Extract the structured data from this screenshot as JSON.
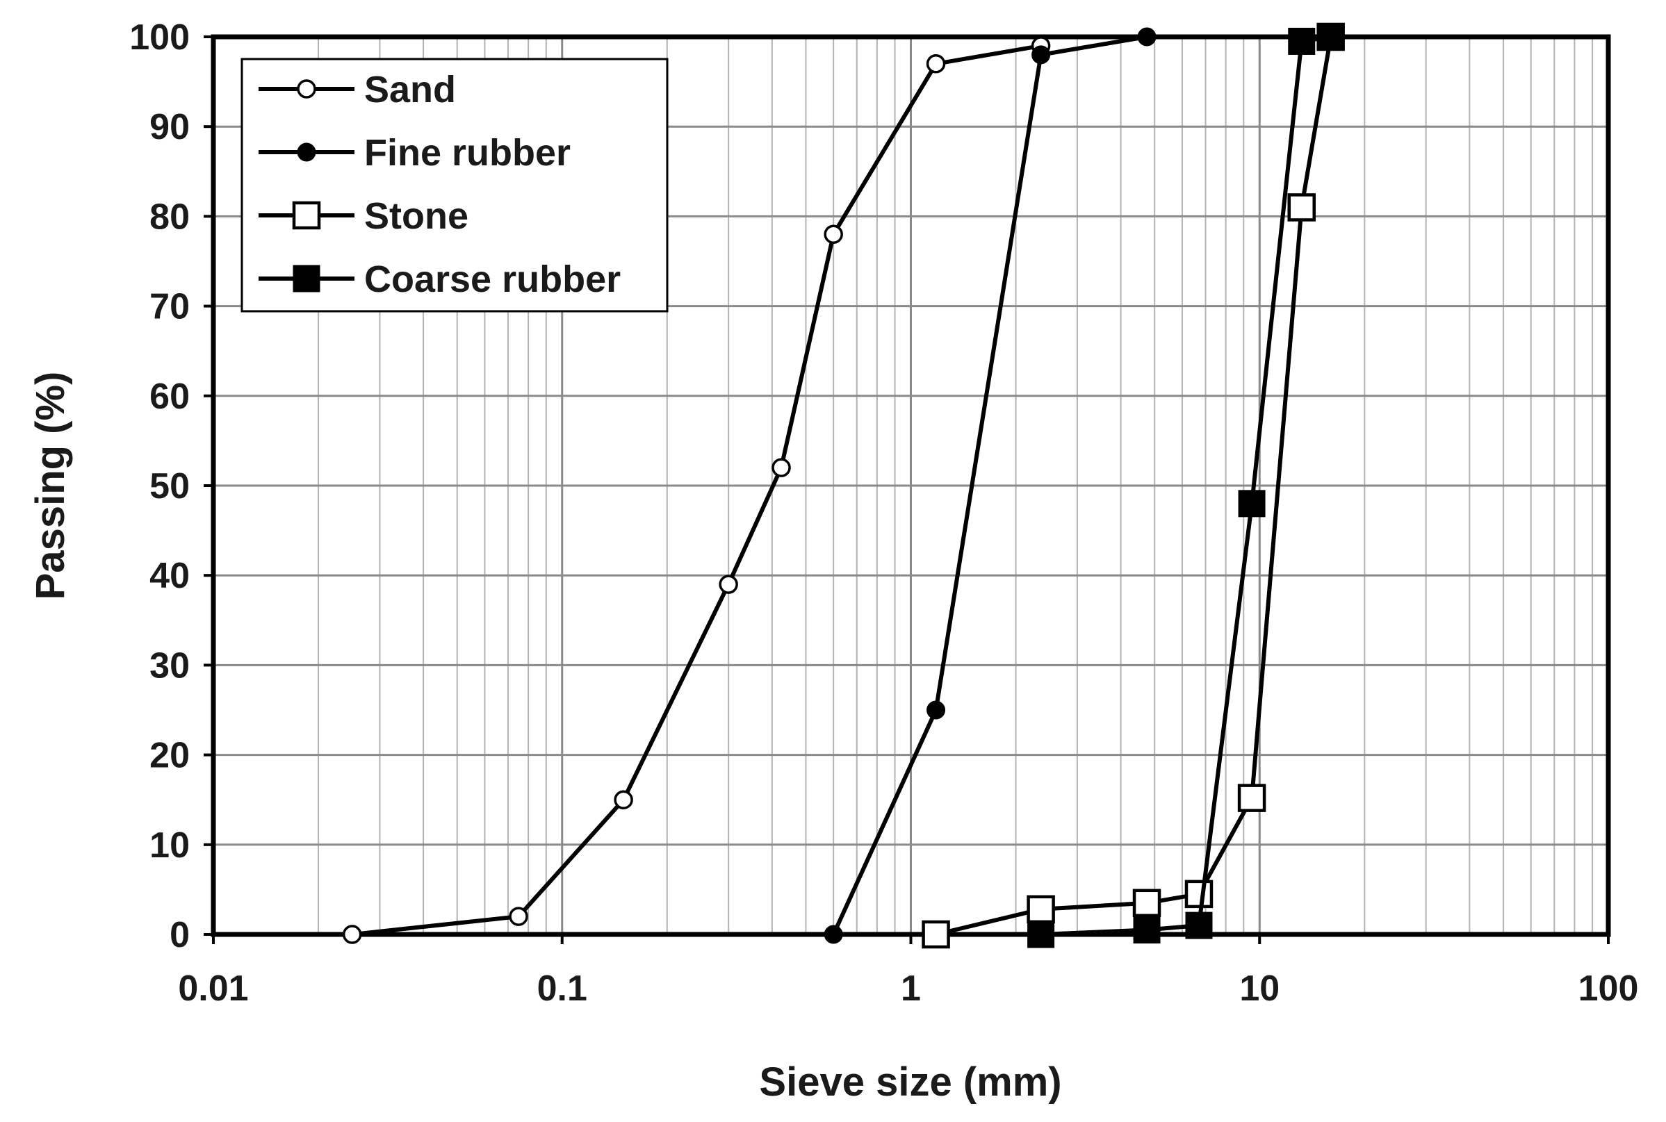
{
  "chart_data": {
    "type": "line",
    "xlabel": "Sieve size (mm)",
    "ylabel": "Passing (%)",
    "xscale": "log",
    "xlim": [
      0.01,
      100
    ],
    "ylim": [
      0,
      100
    ],
    "x_ticks": [
      "0.01",
      "0.1",
      "1",
      "10",
      "100"
    ],
    "y_ticks": [
      "0",
      "10",
      "20",
      "30",
      "40",
      "50",
      "60",
      "70",
      "80",
      "90",
      "100"
    ],
    "grid": true,
    "legend_position": "top-left",
    "series": [
      {
        "name": "Sand",
        "marker": "open-circle",
        "x": [
          0.025,
          0.075,
          0.15,
          0.3,
          0.425,
          0.6,
          1.18,
          2.36
        ],
        "y": [
          0,
          2,
          15,
          39,
          52,
          78,
          97,
          99
        ]
      },
      {
        "name": "Fine rubber",
        "marker": "filled-circle",
        "x": [
          0.6,
          1.18,
          2.36,
          4.75
        ],
        "y": [
          0,
          25,
          98,
          100
        ]
      },
      {
        "name": "Stone",
        "marker": "open-square",
        "x": [
          1.18,
          2.36,
          4.75,
          6.7,
          9.5,
          13.2,
          16
        ],
        "y": [
          0,
          2.8,
          3.5,
          4.5,
          15.2,
          81,
          100
        ]
      },
      {
        "name": "Coarse rubber",
        "marker": "filled-square",
        "x": [
          2.36,
          4.75,
          6.7,
          9.5,
          13.2,
          16
        ],
        "y": [
          0,
          0.5,
          1,
          48,
          99.5,
          100
        ]
      }
    ]
  }
}
